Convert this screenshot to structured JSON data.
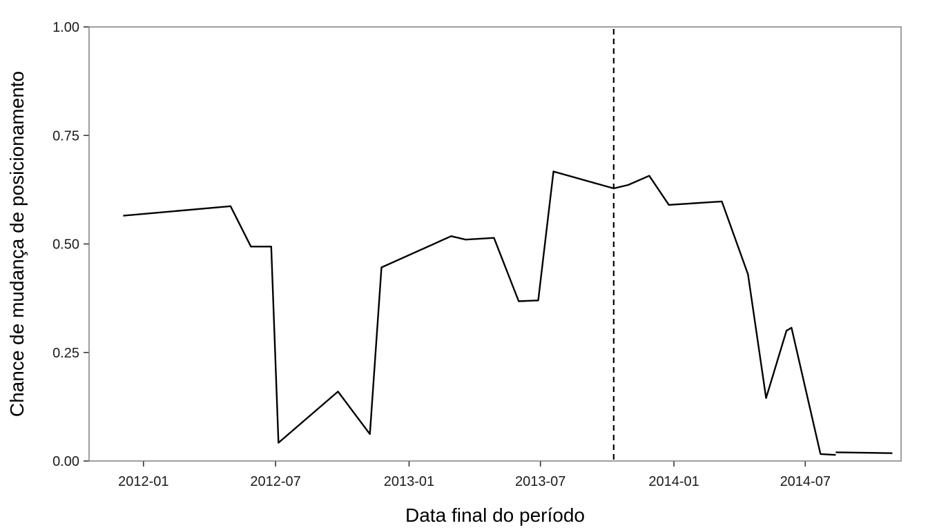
{
  "chart_data": {
    "type": "line",
    "xlabel": "Data final do período",
    "ylabel": "Chance de mudança de posicionamento",
    "xlim": [
      "2011-10-18",
      "2014-11-10"
    ],
    "ylim": [
      0,
      1
    ],
    "x_ticks": [
      {
        "date": "2012-01-01",
        "label": "2012-01"
      },
      {
        "date": "2012-07-01",
        "label": "2012-07"
      },
      {
        "date": "2013-01-01",
        "label": "2013-01"
      },
      {
        "date": "2013-07-01",
        "label": "2013-07"
      },
      {
        "date": "2014-01-01",
        "label": "2014-01"
      },
      {
        "date": "2014-07-01",
        "label": "2014-07"
      }
    ],
    "y_ticks": [
      {
        "value": 0,
        "label": "0.00"
      },
      {
        "value": 0.25,
        "label": "0.25"
      },
      {
        "value": 0.5,
        "label": "0.50"
      },
      {
        "value": 0.75,
        "label": "0.75"
      },
      {
        "value": 1,
        "label": "1.00"
      }
    ],
    "grid": false,
    "legend": "none",
    "colors": {
      "line": "#000000",
      "frame": "#7f7f7f",
      "background": "#ffffff"
    },
    "reference_line": {
      "x": "2013-10-10",
      "style": "dashed"
    },
    "series": [
      {
        "segments": [
          [
            {
              "x": "2011-12-04",
              "y": 0.565
            },
            {
              "x": "2012-04-30",
              "y": 0.587
            },
            {
              "x": "2012-05-28",
              "y": 0.494
            },
            {
              "x": "2012-06-25",
              "y": 0.494
            },
            {
              "x": "2012-07-05",
              "y": 0.042
            },
            {
              "x": "2012-09-25",
              "y": 0.16
            },
            {
              "x": "2012-11-08",
              "y": 0.062
            },
            {
              "x": "2012-11-24",
              "y": 0.446
            },
            {
              "x": "2013-02-28",
              "y": 0.518
            },
            {
              "x": "2013-03-20",
              "y": 0.51
            },
            {
              "x": "2013-04-28",
              "y": 0.514
            },
            {
              "x": "2013-06-01",
              "y": 0.368
            },
            {
              "x": "2013-06-28",
              "y": 0.37
            },
            {
              "x": "2013-07-19",
              "y": 0.667
            },
            {
              "x": "2013-10-10",
              "y": 0.628
            },
            {
              "x": "2013-10-30",
              "y": 0.636
            },
            {
              "x": "2013-11-28",
              "y": 0.657
            },
            {
              "x": "2013-12-25",
              "y": 0.59
            },
            {
              "x": "2014-02-36",
              "y": 0.598
            },
            {
              "x": "2014-04-13",
              "y": 0.43
            },
            {
              "x": "2014-05-08",
              "y": 0.145
            },
            {
              "x": "2014-06-05",
              "y": 0.3
            },
            {
              "x": "2014-06-12",
              "y": 0.307
            },
            {
              "x": "2014-07-22",
              "y": 0.016
            },
            {
              "x": "2014-08-12",
              "y": 0.014
            }
          ],
          [
            {
              "x": "2014-08-12",
              "y": 0.02
            },
            {
              "x": "2014-10-29",
              "y": 0.018
            }
          ]
        ]
      }
    ]
  }
}
